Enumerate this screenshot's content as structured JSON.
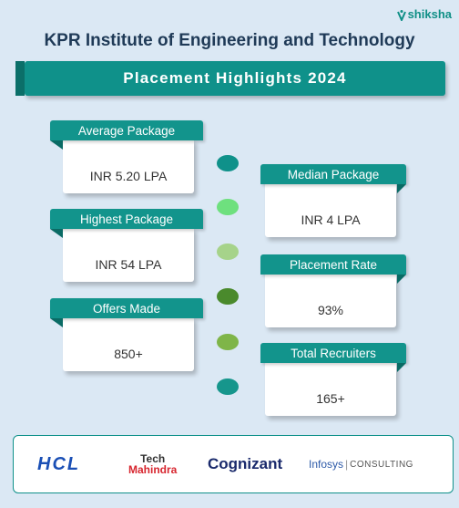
{
  "brand": {
    "name": "shiksha"
  },
  "header": {
    "title": "KPR Institute of Engineering and Technology",
    "banner": "Placement Highlights 2024"
  },
  "stats": [
    {
      "label": "Average Package",
      "value": "INR 5.20 LPA"
    },
    {
      "label": "Median Package",
      "value": "INR 4 LPA"
    },
    {
      "label": "Highest Package",
      "value": "INR 54 LPA"
    },
    {
      "label": "Placement Rate",
      "value": "93%"
    },
    {
      "label": "Offers Made",
      "value": "850+"
    },
    {
      "label": "Total Recruiters",
      "value": "165+"
    }
  ],
  "recruiters": {
    "hcl": "HCL",
    "tech_line1": "Tech",
    "tech_line2": "Mahindra",
    "cognizant": "Cognizant",
    "infosys": "Infosys",
    "infosys_sep": "|",
    "infosys_suffix": "CONSULTING"
  },
  "colors": {
    "primary": "#0f918a",
    "dot1": "#0f918a",
    "dot2": "#6ee07e",
    "dot3": "#a6d38a",
    "dot4": "#4a8a2c",
    "dot5": "#7fb548",
    "dot6": "#16968c"
  },
  "icons": {
    "brand_logo": "shiksha-logo-icon"
  }
}
